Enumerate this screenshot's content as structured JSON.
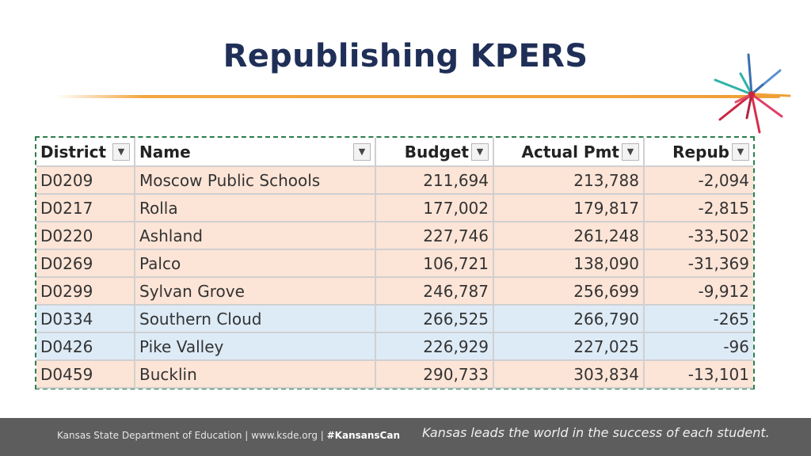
{
  "slide": {
    "title": "Republishing KPERS"
  },
  "colors": {
    "accent_line": "#f0a038",
    "title": "#1f2f57",
    "footer_bg": "#5d5d5d",
    "sheet_border": "#2e7d4f"
  },
  "table": {
    "headers": {
      "district": "District",
      "name": "Name",
      "budget": "Budget",
      "actual": "Actual Pmt",
      "repub": "Repub"
    },
    "filter_icon": "▼",
    "rows": [
      {
        "district": "D0209",
        "name": "Moscow Public Schools",
        "budget": "211,694",
        "actual": "213,788",
        "repub": "-2,094"
      },
      {
        "district": "D0217",
        "name": "Rolla",
        "budget": "177,002",
        "actual": "179,817",
        "repub": "-2,815"
      },
      {
        "district": "D0220",
        "name": "Ashland",
        "budget": "227,746",
        "actual": "261,248",
        "repub": "-33,502"
      },
      {
        "district": "D0269",
        "name": "Palco",
        "budget": "106,721",
        "actual": "138,090",
        "repub": "-31,369"
      },
      {
        "district": "D0299",
        "name": "Sylvan Grove",
        "budget": "246,787",
        "actual": "256,699",
        "repub": "-9,912"
      },
      {
        "district": "D0334",
        "name": "Southern Cloud",
        "budget": "266,525",
        "actual": "266,790",
        "repub": "-265"
      },
      {
        "district": "D0426",
        "name": "Pike Valley",
        "budget": "226,929",
        "actual": "227,025",
        "repub": "-96"
      },
      {
        "district": "D0459",
        "name": "Bucklin",
        "budget": "290,733",
        "actual": "303,834",
        "repub": "-13,101"
      }
    ]
  },
  "footer": {
    "org": "Kansas State Department of Education | www.ksde.org | ",
    "hashtag": "#KansansCan",
    "tagline": "Kansas leads the world in the success of each student."
  }
}
